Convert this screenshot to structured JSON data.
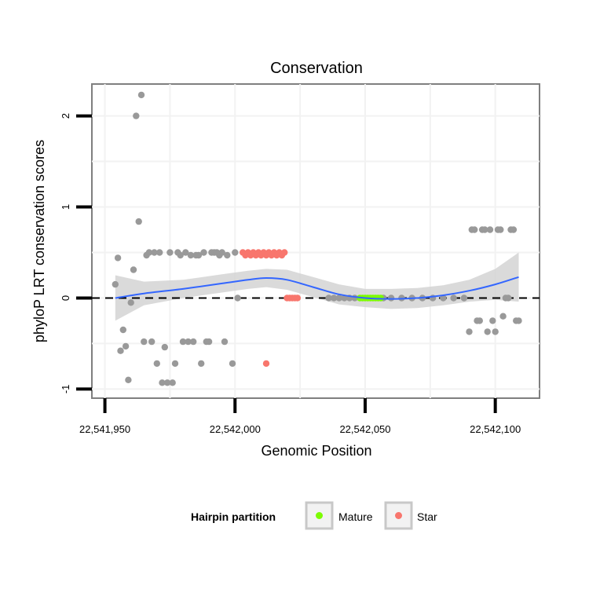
{
  "chart_data": {
    "type": "scatter",
    "title": "Conservation",
    "xlabel": "Genomic Position",
    "ylabel": "phyloP LRT conservation scores",
    "xlim": [
      22541945,
      22542117
    ],
    "ylim": [
      -1.1,
      2.35
    ],
    "x_ticks": [
      {
        "value": 22541950,
        "label": "22,541,950"
      },
      {
        "value": 22542000,
        "label": "22,542,000"
      },
      {
        "value": 22542050,
        "label": "22,542,050"
      },
      {
        "value": 22542100,
        "label": "22,542,100"
      }
    ],
    "y_ticks": [
      {
        "value": -1,
        "label": "-1"
      },
      {
        "value": 0,
        "label": "0"
      },
      {
        "value": 1,
        "label": "1"
      },
      {
        "value": 2,
        "label": "2"
      }
    ],
    "reference_line": {
      "y": 0,
      "style": "dashed"
    },
    "legend": {
      "title": "Hairpin partition",
      "position": "bottom",
      "entries": [
        {
          "label": "Mature",
          "color": "#7cfc00"
        },
        {
          "label": "Star",
          "color": "#f8766d"
        }
      ]
    },
    "colors": {
      "other": "#999999",
      "mature": "#7cfc00",
      "star": "#f8766d",
      "smooth": "#3366ff",
      "band": "#d3d3d3",
      "grid": "#f2f2f2"
    },
    "series": [
      {
        "name": "Other",
        "color": "#999999",
        "points": [
          [
            22541954,
            0.15
          ],
          [
            22541955,
            0.44
          ],
          [
            22541956,
            -0.58
          ],
          [
            22541957,
            -0.35
          ],
          [
            22541958,
            -0.53
          ],
          [
            22541959,
            -0.9
          ],
          [
            22541960,
            -0.05
          ],
          [
            22541961,
            0.31
          ],
          [
            22541962,
            2.0
          ],
          [
            22541963,
            0.84
          ],
          [
            22541964,
            2.23
          ],
          [
            22541965,
            -0.48
          ],
          [
            22541966,
            0.47
          ],
          [
            22541967,
            0.5
          ],
          [
            22541968,
            -0.48
          ],
          [
            22541969,
            0.5
          ],
          [
            22541970,
            -0.72
          ],
          [
            22541971,
            0.5
          ],
          [
            22541972,
            -0.93
          ],
          [
            22541973,
            -0.54
          ],
          [
            22541974,
            -0.93
          ],
          [
            22541975,
            0.5
          ],
          [
            22541976,
            -0.93
          ],
          [
            22541977,
            -0.72
          ],
          [
            22541978,
            0.5
          ],
          [
            22541979,
            0.47
          ],
          [
            22541980,
            -0.48
          ],
          [
            22541981,
            0.5
          ],
          [
            22541982,
            -0.48
          ],
          [
            22541983,
            0.47
          ],
          [
            22541984,
            -0.48
          ],
          [
            22541985,
            0.47
          ],
          [
            22541986,
            0.47
          ],
          [
            22541987,
            -0.72
          ],
          [
            22541988,
            0.5
          ],
          [
            22541989,
            -0.48
          ],
          [
            22541990,
            -0.48
          ],
          [
            22541991,
            0.5
          ],
          [
            22541992,
            0.5
          ],
          [
            22541993,
            0.5
          ],
          [
            22541994,
            0.47
          ],
          [
            22541995,
            0.5
          ],
          [
            22541996,
            -0.48
          ],
          [
            22541997,
            0.47
          ],
          [
            22541999,
            -0.72
          ],
          [
            22542000,
            0.5
          ],
          [
            22542001,
            0.0
          ],
          [
            22542036,
            0.0
          ],
          [
            22542038,
            0.0
          ],
          [
            22542040,
            0.0
          ],
          [
            22542042,
            0.0
          ],
          [
            22542044,
            0.0
          ],
          [
            22542046,
            0.0
          ],
          [
            22542057,
            0.0
          ],
          [
            22542060,
            0.0
          ],
          [
            22542064,
            0.0
          ],
          [
            22542068,
            0.0
          ],
          [
            22542072,
            0.0
          ],
          [
            22542076,
            0.0
          ],
          [
            22542080,
            0.0
          ],
          [
            22542084,
            0.0
          ],
          [
            22542088,
            0.0
          ],
          [
            22542090,
            -0.37
          ],
          [
            22542091,
            0.75
          ],
          [
            22542092,
            0.75
          ],
          [
            22542093,
            -0.25
          ],
          [
            22542094,
            -0.25
          ],
          [
            22542095,
            0.75
          ],
          [
            22542096,
            0.75
          ],
          [
            22542097,
            -0.37
          ],
          [
            22542098,
            0.75
          ],
          [
            22542099,
            -0.25
          ],
          [
            22542100,
            -0.37
          ],
          [
            22542101,
            0.75
          ],
          [
            22542102,
            0.75
          ],
          [
            22542103,
            -0.2
          ],
          [
            22542104,
            0.0
          ],
          [
            22542105,
            0.0
          ],
          [
            22542106,
            0.75
          ],
          [
            22542107,
            0.75
          ],
          [
            22542108,
            -0.25
          ],
          [
            22542109,
            -0.25
          ]
        ]
      },
      {
        "name": "Star",
        "color": "#f8766d",
        "points": [
          [
            22542003,
            0.5
          ],
          [
            22542004,
            0.47
          ],
          [
            22542005,
            0.5
          ],
          [
            22542006,
            0.47
          ],
          [
            22542007,
            0.5
          ],
          [
            22542008,
            0.47
          ],
          [
            22542009,
            0.5
          ],
          [
            22542010,
            0.47
          ],
          [
            22542011,
            0.5
          ],
          [
            22542012,
            0.47
          ],
          [
            22542012,
            -0.72
          ],
          [
            22542013,
            0.5
          ],
          [
            22542014,
            0.47
          ],
          [
            22542015,
            0.5
          ],
          [
            22542016,
            0.47
          ],
          [
            22542017,
            0.5
          ],
          [
            22542018,
            0.47
          ],
          [
            22542019,
            0.5
          ],
          [
            22542020,
            0.0
          ],
          [
            22542021,
            0.0
          ],
          [
            22542022,
            0.0
          ],
          [
            22542023,
            0.0
          ],
          [
            22542024,
            0.0
          ]
        ]
      },
      {
        "name": "Mature",
        "color": "#7cfc00",
        "points": [
          [
            22542048,
            0.0
          ],
          [
            22542049,
            0.0
          ],
          [
            22542050,
            0.0
          ],
          [
            22542051,
            0.0
          ],
          [
            22542052,
            0.0
          ],
          [
            22542053,
            0.0
          ],
          [
            22542054,
            0.0
          ],
          [
            22542055,
            0.0
          ],
          [
            22542056,
            0.0
          ]
        ]
      }
    ],
    "smooth": {
      "x": [
        22541954,
        22541965,
        22541980,
        22541995,
        22542005,
        22542012,
        22542020,
        22542030,
        22542040,
        22542050,
        22542060,
        22542070,
        22542080,
        22542090,
        22542100,
        22542109
      ],
      "y": [
        0.0,
        0.05,
        0.1,
        0.16,
        0.2,
        0.22,
        0.2,
        0.12,
        0.04,
        0.0,
        -0.01,
        0.0,
        0.03,
        0.08,
        0.15,
        0.23
      ],
      "lower": [
        -0.25,
        -0.08,
        0.0,
        0.06,
        0.1,
        0.12,
        0.09,
        0.01,
        -0.07,
        -0.1,
        -0.12,
        -0.11,
        -0.08,
        -0.04,
        -0.02,
        -0.04
      ],
      "upper": [
        0.25,
        0.18,
        0.2,
        0.26,
        0.3,
        0.32,
        0.31,
        0.23,
        0.15,
        0.1,
        0.1,
        0.11,
        0.14,
        0.2,
        0.32,
        0.5
      ]
    }
  }
}
